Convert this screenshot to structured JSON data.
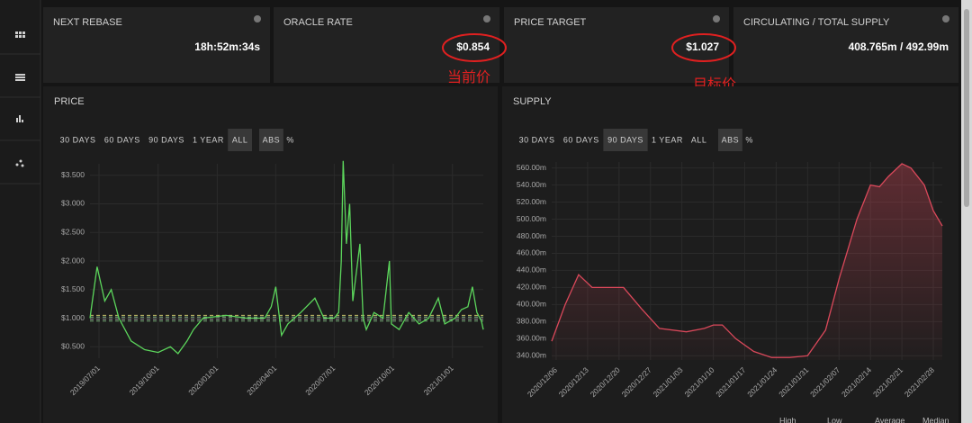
{
  "cards": [
    {
      "title": "NEXT REBASE",
      "value": "18h:52m:34s"
    },
    {
      "title": "ORACLE RATE",
      "value": "$0.854"
    },
    {
      "title": "PRICE TARGET",
      "value": "$1.027"
    },
    {
      "title": "CIRCULATING / TOTAL SUPPLY",
      "value": "408.765m / 492.99m"
    }
  ],
  "annotations": [
    "当前价",
    "目标价"
  ],
  "chart_data": [
    {
      "type": "line",
      "title": "PRICE",
      "buttons": [
        "30 DAYS",
        "60 DAYS",
        "90 DAYS",
        "1 YEAR",
        "ALL"
      ],
      "selected": "ALL",
      "modes": [
        "ABS",
        "%"
      ],
      "mode": "ABS",
      "color": "#5cd65c",
      "x": [
        "2019/06/17",
        "2019/06/28",
        "2019/07/10",
        "2019/07/20",
        "2019/08/01",
        "2019/08/20",
        "2019/09/10",
        "2019/10/01",
        "2019/10/20",
        "2019/11/01",
        "2019/11/15",
        "2019/11/25",
        "2019/12/10",
        "2020/01/15",
        "2020/02/15",
        "2020/03/15",
        "2020/03/25",
        "2020/04/01",
        "2020/04/10",
        "2020/04/20",
        "2020/05/10",
        "2020/06/01",
        "2020/06/15",
        "2020/07/01",
        "2020/07/08",
        "2020/07/12",
        "2020/07/15",
        "2020/07/20",
        "2020/07/25",
        "2020/07/30",
        "2020/08/10",
        "2020/08/15",
        "2020/08/20",
        "2020/09/01",
        "2020/09/15",
        "2020/09/25",
        "2020/09/28",
        "2020/10/10",
        "2020/10/25",
        "2020/11/10",
        "2020/11/25",
        "2020/12/10",
        "2020/12/20",
        "2021/01/05",
        "2021/01/15",
        "2021/01/25",
        "2021/02/01",
        "2021/02/08",
        "2021/02/15",
        "2021/02/18"
      ],
      "values": [
        1.0,
        1.9,
        1.3,
        1.5,
        1.0,
        0.6,
        0.45,
        0.4,
        0.5,
        0.38,
        0.6,
        0.8,
        1.0,
        1.05,
        1.0,
        1.0,
        1.2,
        1.55,
        0.7,
        0.9,
        1.1,
        1.35,
        1.0,
        1.0,
        1.1,
        2.0,
        3.75,
        2.3,
        3.0,
        1.3,
        2.3,
        1.0,
        0.8,
        1.1,
        1.0,
        2.0,
        0.9,
        0.8,
        1.1,
        0.9,
        1.0,
        1.35,
        0.9,
        1.0,
        1.15,
        1.2,
        1.55,
        1.1,
        0.95,
        0.8
      ],
      "xlim": [
        "2019/06/17",
        "2021/02/18"
      ],
      "xticks": [
        "2019/07/01",
        "2019/10/01",
        "2020/01/01",
        "2020/04/01",
        "2020/07/01",
        "2020/10/01",
        "2021/01/01"
      ],
      "ylim": [
        0.3,
        3.7
      ],
      "yticks": [
        {
          "value": 0.5,
          "label": "$0.500"
        },
        {
          "value": 1,
          "label": "$1.000"
        },
        {
          "value": 1.5,
          "label": "$1.500"
        },
        {
          "value": 2,
          "label": "$2.000"
        },
        {
          "value": 2.5,
          "label": "$2.500"
        },
        {
          "value": 3,
          "label": "$3.000"
        },
        {
          "value": 3.5,
          "label": "$3.500"
        }
      ],
      "grid": true,
      "reference_lines": [
        {
          "value": 1.05,
          "color": "#c9c36a"
        },
        {
          "value": 1.02,
          "color": "#8fbf8f"
        },
        {
          "value": 0.98,
          "color": "#9a9a9a"
        },
        {
          "value": 0.95,
          "color": "#6fa36f"
        }
      ]
    },
    {
      "type": "area",
      "title": "SUPPLY",
      "buttons": [
        "30 DAYS",
        "60 DAYS",
        "90 DAYS",
        "1 YEAR",
        "ALL"
      ],
      "selected": "90 DAYS",
      "modes": [
        "ABS",
        "%"
      ],
      "mode": "ABS",
      "color": "#d9485a",
      "x": [
        "2020/12/05",
        "2020/12/08",
        "2020/12/11",
        "2020/12/14",
        "2020/12/21",
        "2020/12/25",
        "2020/12/29",
        "2021/01/04",
        "2021/01/08",
        "2021/01/10",
        "2021/01/12",
        "2021/01/15",
        "2021/01/19",
        "2021/01/23",
        "2021/01/27",
        "2021/01/31",
        "2021/02/04",
        "2021/02/07",
        "2021/02/11",
        "2021/02/14",
        "2021/02/16",
        "2021/02/18",
        "2021/02/21",
        "2021/02/23",
        "2021/02/26",
        "2021/02/28",
        "2021/03/02"
      ],
      "values": [
        357,
        400,
        435,
        420,
        420,
        395,
        372,
        368,
        372,
        376,
        376,
        360,
        345,
        338,
        338,
        340,
        370,
        430,
        500,
        540,
        538,
        550,
        565,
        560,
        540,
        510,
        492
      ],
      "xlim": [
        "2020/12/05",
        "2021/03/02"
      ],
      "xticks": [
        "2020/12/06",
        "2020/12/13",
        "2020/12/20",
        "2020/12/27",
        "2021/01/03",
        "2021/01/10",
        "2021/01/17",
        "2021/01/24",
        "2021/01/31",
        "2021/02/07",
        "2021/02/14",
        "2021/02/21",
        "2021/02/28"
      ],
      "ylim": [
        335,
        567
      ],
      "yticks": [
        {
          "value": 340,
          "label": "340.00m"
        },
        {
          "value": 360,
          "label": "360.00m"
        },
        {
          "value": 380,
          "label": "380.00m"
        },
        {
          "value": 400,
          "label": "400.00m"
        },
        {
          "value": 420,
          "label": "420.00m"
        },
        {
          "value": 440,
          "label": "440.00m"
        },
        {
          "value": 460,
          "label": "460.00m"
        },
        {
          "value": 480,
          "label": "480.00m"
        },
        {
          "value": 500,
          "label": "500.00m"
        },
        {
          "value": 520,
          "label": "520.00m"
        },
        {
          "value": 540,
          "label": "540.00m"
        },
        {
          "value": 560,
          "label": "560.00m"
        }
      ],
      "grid": true,
      "legend": [
        "High",
        "Low",
        "Average",
        "Median"
      ]
    }
  ]
}
